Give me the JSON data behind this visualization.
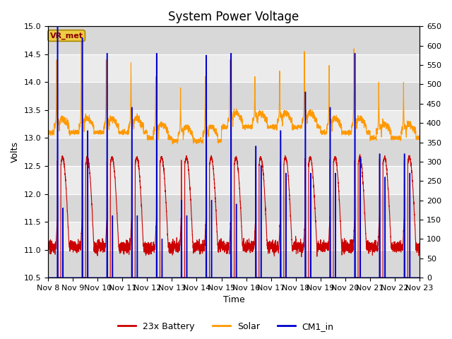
{
  "title": "System Power Voltage",
  "xlabel": "Time",
  "ylabel": "Volts",
  "xlim": [
    0,
    15
  ],
  "ylim_left": [
    10.5,
    15.0
  ],
  "ylim_right": [
    0,
    650
  ],
  "yticks_left": [
    10.5,
    11.0,
    11.5,
    12.0,
    12.5,
    13.0,
    13.5,
    14.0,
    14.5,
    15.0
  ],
  "yticks_right": [
    0,
    50,
    100,
    150,
    200,
    250,
    300,
    350,
    400,
    450,
    500,
    550,
    600,
    650
  ],
  "xtick_labels": [
    "Nov 8",
    "Nov 9",
    "Nov 10",
    "Nov 11",
    "Nov 12",
    "Nov 13",
    "Nov 14",
    "Nov 15",
    "Nov 16",
    "Nov 17",
    "Nov 18",
    "Nov 19",
    "Nov 20",
    "Nov 21",
    "Nov 22",
    "Nov 23"
  ],
  "xtick_positions": [
    0,
    1,
    2,
    3,
    4,
    5,
    6,
    7,
    8,
    9,
    10,
    11,
    12,
    13,
    14,
    15
  ],
  "legend_labels": [
    "23x Battery",
    "Solar",
    "CM1_in"
  ],
  "legend_colors": [
    "#cc0000",
    "#ff9900",
    "#0000cc"
  ],
  "vr_met_box_color": "#eecc44",
  "vr_met_text_color": "#880000",
  "background_color": "#ffffff",
  "band_light": "#ebebeb",
  "band_dark": "#d8d8d8",
  "grid_line_color": "#ffffff",
  "battery_color": "#cc0000",
  "solar_color": "#ff9900",
  "cm1_color": "#0000cc",
  "title_fontsize": 12,
  "axis_label_fontsize": 9,
  "tick_fontsize": 8,
  "n_days": 15,
  "samples_per_day": 288,
  "solar_base": 13.2,
  "battery_night": 11.05,
  "battery_day_peak": 12.6,
  "cm1_spike_heights": [
    650,
    620,
    580,
    440,
    580,
    200,
    575,
    580,
    340,
    380,
    480,
    440,
    580,
    320,
    320
  ],
  "cm1_spike2_heights": [
    180,
    380,
    160,
    160,
    100,
    160,
    200,
    190,
    290,
    270,
    270,
    270,
    310,
    260,
    270
  ],
  "solar_peak_heights": [
    14.4,
    14.8,
    14.4,
    14.35,
    14.1,
    13.9,
    14.1,
    14.4,
    14.1,
    14.2,
    14.55,
    14.3,
    14.6,
    14.0,
    14.0
  ],
  "solar_base_daily": [
    13.2,
    13.2,
    13.2,
    13.2,
    13.1,
    13.05,
    13.05,
    13.3,
    13.3,
    13.3,
    13.3,
    13.2,
    13.2,
    13.1,
    13.1
  ]
}
